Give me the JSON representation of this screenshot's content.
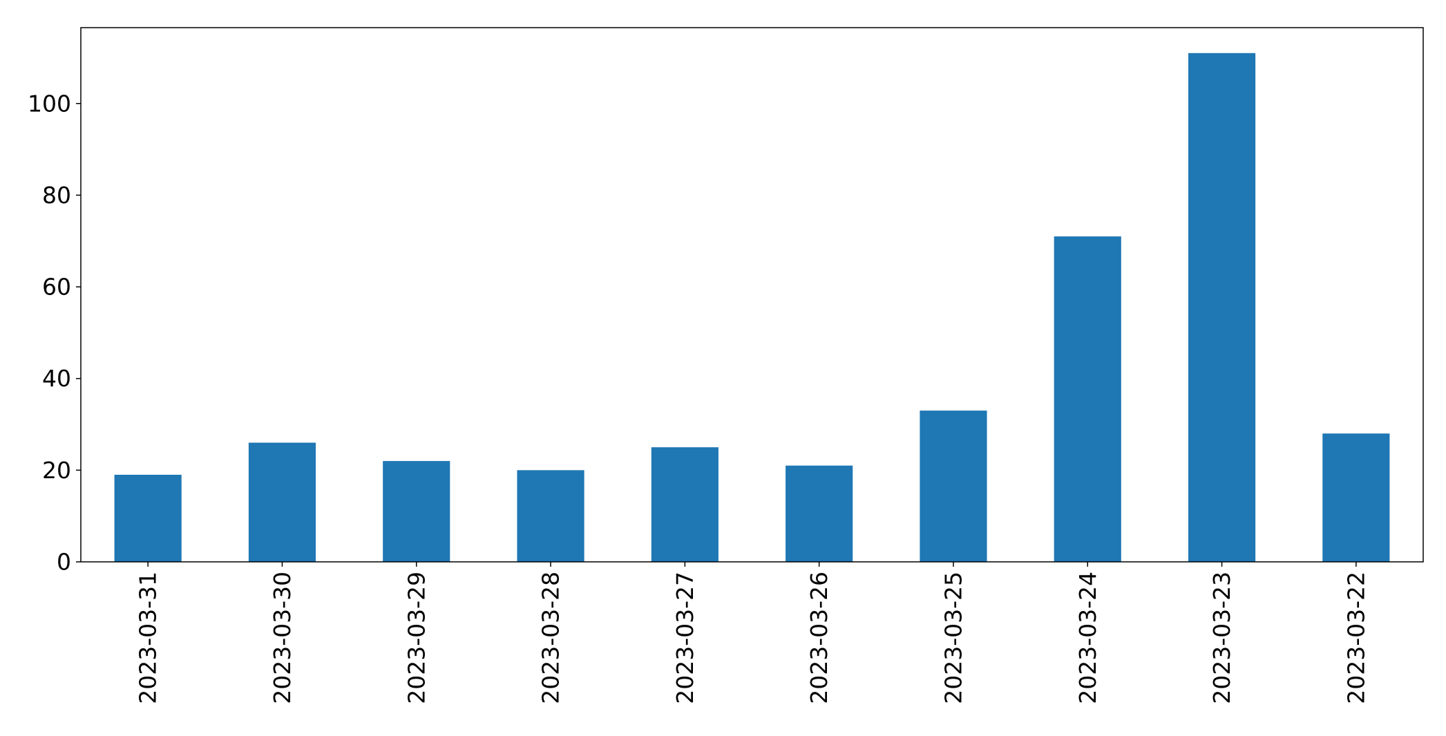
{
  "chart_data": {
    "type": "bar",
    "title": "",
    "xlabel": "",
    "ylabel": "",
    "categories": [
      "2023-03-31",
      "2023-03-30",
      "2023-03-29",
      "2023-03-28",
      "2023-03-27",
      "2023-03-26",
      "2023-03-25",
      "2023-03-24",
      "2023-03-23",
      "2023-03-22"
    ],
    "values": [
      19,
      26,
      22,
      20,
      25,
      21,
      33,
      71,
      111,
      28
    ],
    "ylim": [
      0,
      116.55
    ],
    "yticks": [
      0,
      20,
      40,
      60,
      80,
      100
    ],
    "grid": false,
    "legend": "none",
    "bar_color": "#1f77b4"
  }
}
